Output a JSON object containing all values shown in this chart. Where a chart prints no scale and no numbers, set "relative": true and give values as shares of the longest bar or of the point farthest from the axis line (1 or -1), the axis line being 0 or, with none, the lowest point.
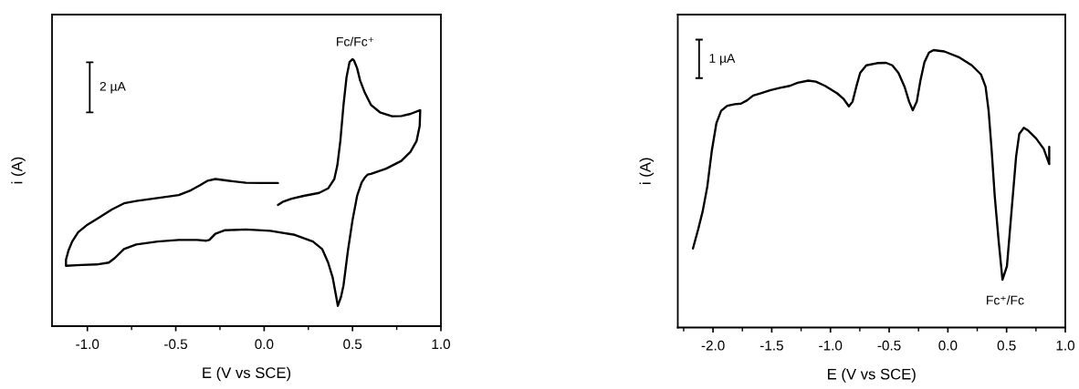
{
  "chart_data": [
    {
      "type": "line",
      "relative": true,
      "xlabel": "E (V vs SCE)",
      "ylabel": "i (A)",
      "xlim": [
        -1.2,
        1.0
      ],
      "xticks": [
        {
          "value": -1.0,
          "label": "-1.0"
        },
        {
          "value": -0.75,
          "label": null
        },
        {
          "value": -0.5,
          "label": "-0.5"
        },
        {
          "value": -0.25,
          "label": null
        },
        {
          "value": 0.0,
          "label": "0.0"
        },
        {
          "value": 0.25,
          "label": null
        },
        {
          "value": 0.5,
          "label": "0.5"
        },
        {
          "value": 0.75,
          "label": null
        },
        {
          "value": 1.0,
          "label": "1.0"
        }
      ],
      "annotations": [
        "2 µA",
        {
          "text": "Fc/Fc⁺",
          "x": 0.5,
          "y": 1.0
        }
      ],
      "series": [
        {
          "color": "#000000",
          "x": [
            0.078,
            0.0,
            -0.103,
            -0.207,
            -0.276,
            -0.319,
            -0.362,
            -0.414,
            -0.483,
            -0.603,
            -0.724,
            -0.793,
            -0.862,
            -0.931,
            -1.0,
            -1.052,
            -1.086,
            -1.107,
            -1.121,
            -1.121,
            -1.034,
            -0.948,
            -0.879,
            -0.845,
            -0.793,
            -0.724,
            -0.603,
            -0.483,
            -0.379,
            -0.327,
            -0.31,
            -0.276,
            -0.224,
            -0.103,
            0.035,
            0.173,
            0.276,
            0.328,
            0.362,
            0.388,
            0.405,
            0.417,
            0.435,
            0.449,
            0.474,
            0.5,
            0.526,
            0.552,
            0.569,
            0.586,
            0.604,
            0.69,
            0.776,
            0.828,
            0.862,
            0.88,
            0.883,
            0.828,
            0.776,
            0.724,
            0.655,
            0.604,
            0.569,
            0.543,
            0.526,
            0.509,
            0.5,
            0.483,
            0.466,
            0.449,
            0.431,
            0.414,
            0.397,
            0.362,
            0.311,
            0.224,
            0.155,
            0.104,
            0.078
          ],
          "values": [
            0.536,
            0.536,
            0.537,
            0.545,
            0.551,
            0.545,
            0.528,
            0.509,
            0.491,
            0.48,
            0.469,
            0.46,
            0.437,
            0.408,
            0.38,
            0.352,
            0.317,
            0.283,
            0.249,
            0.226,
            0.229,
            0.231,
            0.238,
            0.255,
            0.289,
            0.306,
            0.317,
            0.323,
            0.323,
            0.32,
            0.323,
            0.346,
            0.359,
            0.362,
            0.357,
            0.342,
            0.317,
            0.289,
            0.238,
            0.181,
            0.12,
            0.076,
            0.11,
            0.153,
            0.283,
            0.397,
            0.488,
            0.539,
            0.556,
            0.568,
            0.57,
            0.59,
            0.619,
            0.653,
            0.693,
            0.75,
            0.809,
            0.795,
            0.787,
            0.786,
            0.801,
            0.829,
            0.875,
            0.92,
            0.966,
            0.994,
            1.0,
            0.989,
            0.932,
            0.829,
            0.693,
            0.602,
            0.551,
            0.516,
            0.499,
            0.488,
            0.477,
            0.465,
            0.454
          ]
        }
      ]
    },
    {
      "type": "line",
      "relative": true,
      "xlabel": "E (V vs SCE)",
      "ylabel": "i (A)",
      "xlim": [
        -2.3,
        1.0
      ],
      "xticks": [
        {
          "value": -2.25,
          "label": null
        },
        {
          "value": -2.0,
          "label": "-2.0"
        },
        {
          "value": -1.75,
          "label": null
        },
        {
          "value": -1.5,
          "label": "-1.5"
        },
        {
          "value": -1.25,
          "label": null
        },
        {
          "value": -1.0,
          "label": "-1.0"
        },
        {
          "value": -0.75,
          "label": null
        },
        {
          "value": -0.5,
          "label": "-0.5"
        },
        {
          "value": -0.25,
          "label": null
        },
        {
          "value": 0.0,
          "label": "0.0"
        },
        {
          "value": 0.25,
          "label": null
        },
        {
          "value": 0.5,
          "label": "0.5"
        },
        {
          "value": 0.75,
          "label": null
        },
        {
          "value": 1.0,
          "label": "1.0"
        }
      ],
      "annotations": [
        "1 µA",
        {
          "text": "Fc⁺/Fc",
          "x": 0.465,
          "y": 0.172
        }
      ],
      "series": [
        {
          "color": "#000000",
          "x": [
            -2.171,
            -2.127,
            -2.088,
            -2.049,
            -2.01,
            -1.971,
            -1.931,
            -1.879,
            -1.814,
            -1.762,
            -1.71,
            -1.658,
            -1.593,
            -1.515,
            -1.437,
            -1.346,
            -1.28,
            -1.189,
            -1.124,
            -1.046,
            -0.942,
            -0.89,
            -0.843,
            -0.812,
            -0.78,
            -0.747,
            -0.695,
            -0.603,
            -0.525,
            -0.473,
            -0.421,
            -0.369,
            -0.33,
            -0.299,
            -0.265,
            -0.234,
            -0.2,
            -0.161,
            -0.122,
            -0.03,
            0.1,
            0.204,
            0.282,
            0.321,
            0.347,
            0.373,
            0.399,
            0.433,
            0.465,
            0.503,
            0.542,
            0.581,
            0.608,
            0.647,
            0.686,
            0.751,
            0.816,
            0.863,
            0.863
          ],
          "values": [
            0.285,
            0.353,
            0.419,
            0.507,
            0.638,
            0.737,
            0.781,
            0.799,
            0.805,
            0.807,
            0.819,
            0.836,
            0.844,
            0.855,
            0.863,
            0.871,
            0.882,
            0.89,
            0.886,
            0.871,
            0.844,
            0.825,
            0.797,
            0.814,
            0.868,
            0.918,
            0.945,
            0.953,
            0.954,
            0.945,
            0.918,
            0.868,
            0.814,
            0.783,
            0.814,
            0.89,
            0.956,
            0.991,
            1.0,
            0.995,
            0.973,
            0.945,
            0.912,
            0.868,
            0.781,
            0.638,
            0.474,
            0.309,
            0.172,
            0.221,
            0.419,
            0.616,
            0.698,
            0.72,
            0.709,
            0.682,
            0.644,
            0.589,
            0.651
          ]
        }
      ]
    }
  ]
}
